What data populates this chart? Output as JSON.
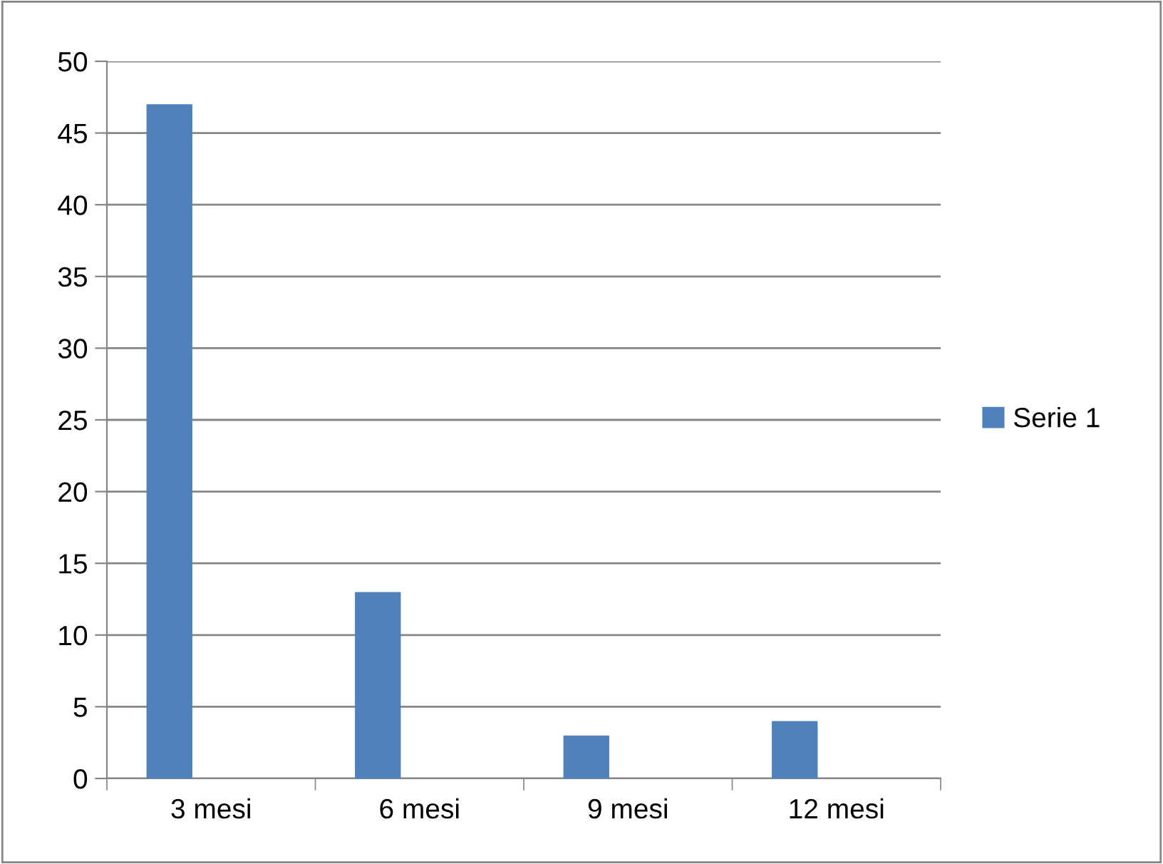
{
  "chart_data": {
    "type": "bar",
    "categories": [
      "3 mesi",
      "6 mesi",
      "9 mesi",
      "12 mesi"
    ],
    "series": [
      {
        "name": "Serie 1",
        "color": "#4f81bd",
        "values": [
          47,
          13,
          3,
          4
        ]
      }
    ],
    "ylim": [
      0,
      50
    ],
    "yticks": [
      0,
      5,
      10,
      15,
      20,
      25,
      30,
      35,
      40,
      45,
      50
    ],
    "grid": "y",
    "legend": "right"
  }
}
